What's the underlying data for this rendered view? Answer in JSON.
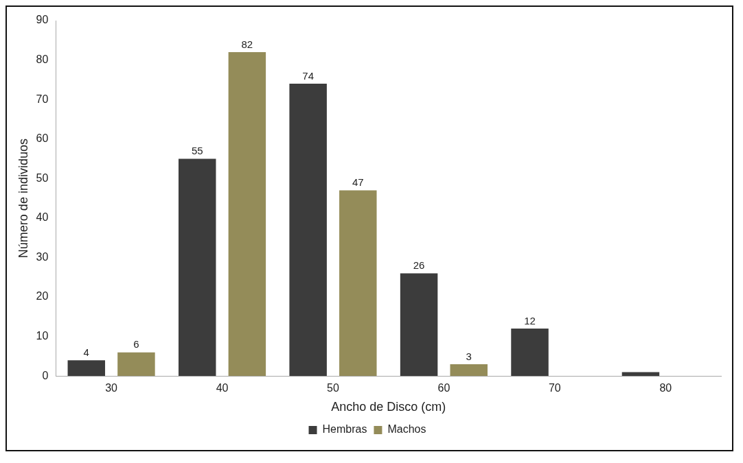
{
  "chart_data": {
    "type": "bar",
    "xlabel": "Ancho de Disco (cm)",
    "ylabel": "Número de individuos",
    "categories": [
      "30",
      "40",
      "50",
      "60",
      "70",
      "80"
    ],
    "series": [
      {
        "name": "Hembras",
        "color": "#3c3c3c",
        "values": [
          4,
          55,
          74,
          26,
          12,
          1
        ],
        "value_labels": [
          "4",
          "55",
          "74",
          "26",
          "12",
          null
        ]
      },
      {
        "name": "Machos",
        "color": "#948c59",
        "values": [
          6,
          82,
          47,
          3,
          null,
          null
        ],
        "value_labels": [
          "6",
          "82",
          "47",
          "3",
          null,
          null
        ]
      }
    ],
    "ylim": [
      0,
      90
    ],
    "yticks": [
      0,
      10,
      20,
      30,
      40,
      50,
      60,
      70,
      80,
      90
    ],
    "grid": false,
    "legend": "bottom"
  }
}
